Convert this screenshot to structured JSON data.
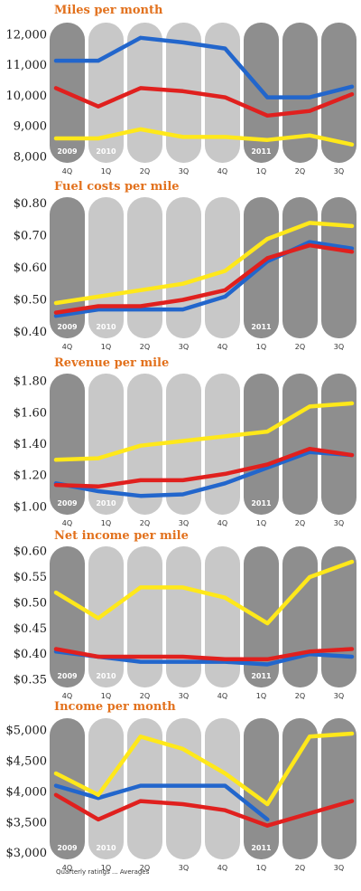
{
  "colors": {
    "title": "#e2711d",
    "series": [
      "#2266cc",
      "#e0201e",
      "#ffe81a"
    ],
    "col_dark": "#8e8e8e",
    "col_light": "#c8c8c8",
    "col_mid": "#a8a8a8"
  },
  "chart_data": [
    {
      "type": "line",
      "title": "Miles per month",
      "yticks": [
        "12,000",
        "11,000",
        "10,000",
        "9,000",
        "8,000"
      ],
      "ylim": [
        7800,
        12400
      ],
      "categories": [
        "4Q",
        "1Q",
        "2Q",
        "3Q",
        "4Q",
        "1Q",
        "2Q",
        "3Q"
      ],
      "year_labels": [
        "2009",
        "2010",
        "",
        "",
        "",
        "2011",
        "",
        ""
      ],
      "column_shades": [
        "dark",
        "light",
        "light",
        "light",
        "light",
        "dark",
        "dark",
        "dark"
      ],
      "series": [
        {
          "values": [
            11150,
            11150,
            11900,
            11750,
            11550,
            9950,
            9950,
            10300
          ]
        },
        {
          "values": [
            10250,
            9650,
            10250,
            10150,
            9950,
            9350,
            9500,
            10050
          ]
        },
        {
          "values": [
            8600,
            8600,
            8900,
            8650,
            8650,
            8550,
            8700,
            8400
          ]
        }
      ]
    },
    {
      "type": "line",
      "title": "Fuel costs per mile",
      "yticks": [
        "$0.80",
        "$0.70",
        "$0.60",
        "$0.50",
        "$0.40"
      ],
      "ylim": [
        0.38,
        0.82
      ],
      "categories": [
        "4Q",
        "1Q",
        "2Q",
        "3Q",
        "4Q",
        "1Q",
        "2Q",
        "3Q"
      ],
      "year_labels": [
        "2009",
        "2010",
        "",
        "",
        "",
        "2011",
        "",
        ""
      ],
      "column_shades": [
        "dark",
        "light",
        "light",
        "light",
        "light",
        "dark",
        "dark",
        "dark"
      ],
      "series": [
        {
          "values": [
            0.45,
            0.47,
            0.47,
            0.47,
            0.51,
            0.62,
            0.68,
            0.66
          ]
        },
        {
          "values": [
            0.46,
            0.48,
            0.48,
            0.5,
            0.53,
            0.63,
            0.67,
            0.65
          ]
        },
        {
          "values": [
            0.49,
            0.51,
            0.53,
            0.55,
            0.59,
            0.69,
            0.74,
            0.73
          ]
        }
      ]
    },
    {
      "type": "line",
      "title": "Revenue per mile",
      "yticks": [
        "$1.80",
        "$1.60",
        "$1.40",
        "$1.20",
        "$1.00"
      ],
      "ylim": [
        0.95,
        1.85
      ],
      "categories": [
        "4Q",
        "1Q",
        "2Q",
        "3Q",
        "4Q",
        "1Q",
        "2Q",
        "3Q"
      ],
      "year_labels": [
        "2009",
        "2010",
        "",
        "",
        "",
        "2011",
        "",
        ""
      ],
      "column_shades": [
        "dark",
        "light",
        "light",
        "light",
        "light",
        "dark",
        "dark",
        "dark"
      ],
      "series": [
        {
          "values": [
            1.15,
            1.1,
            1.07,
            1.08,
            1.15,
            1.25,
            1.35,
            1.33
          ]
        },
        {
          "values": [
            1.14,
            1.13,
            1.17,
            1.17,
            1.21,
            1.27,
            1.37,
            1.33
          ]
        },
        {
          "values": [
            1.3,
            1.31,
            1.39,
            1.42,
            1.45,
            1.48,
            1.64,
            1.66
          ]
        }
      ]
    },
    {
      "type": "line",
      "title": "Net income per mile",
      "yticks": [
        "$0.60",
        "$0.55",
        "$0.50",
        "$0.45",
        "$0.40",
        "$0.35"
      ],
      "ylim": [
        0.335,
        0.61
      ],
      "categories": [
        "4Q",
        "1Q",
        "2Q",
        "3Q",
        "4Q",
        "1Q",
        "2Q",
        "3Q"
      ],
      "year_labels": [
        "2009",
        "2010",
        "",
        "",
        "",
        "2011",
        "",
        ""
      ],
      "column_shades": [
        "dark",
        "light",
        "light",
        "light",
        "light",
        "dark",
        "dark",
        "dark"
      ],
      "series": [
        {
          "values": [
            0.405,
            0.395,
            0.385,
            0.385,
            0.385,
            0.38,
            0.4,
            0.395
          ]
        },
        {
          "values": [
            0.41,
            0.395,
            0.395,
            0.395,
            0.39,
            0.39,
            0.405,
            0.41
          ]
        },
        {
          "values": [
            0.52,
            0.47,
            0.53,
            0.53,
            0.51,
            0.46,
            0.55,
            0.58
          ]
        }
      ]
    },
    {
      "type": "line",
      "title": "Income per month",
      "yticks": [
        "$5,000",
        "$4,500",
        "$4,000",
        "$3,500",
        "$3,000"
      ],
      "ylim": [
        2900,
        5200
      ],
      "categories": [
        "4Q",
        "1Q",
        "2Q",
        "3Q",
        "4Q",
        "1Q",
        "2Q",
        "3Q"
      ],
      "year_labels": [
        "2009",
        "2010",
        "",
        "",
        "",
        "2011",
        "",
        ""
      ],
      "column_shades": [
        "dark",
        "light",
        "light",
        "light",
        "light",
        "dark",
        "dark",
        "dark"
      ],
      "series": [
        {
          "values": [
            4100,
            3900,
            4100,
            4100,
            4100,
            3550,
            null,
            null
          ]
        },
        {
          "values": [
            3950,
            3550,
            3850,
            3800,
            3700,
            3450,
            3650,
            3850
          ]
        },
        {
          "values": [
            4300,
            3950,
            4900,
            4700,
            4300,
            3800,
            4900,
            4950
          ]
        }
      ]
    }
  ],
  "footnote": "Quarterly ratings ... Averages"
}
